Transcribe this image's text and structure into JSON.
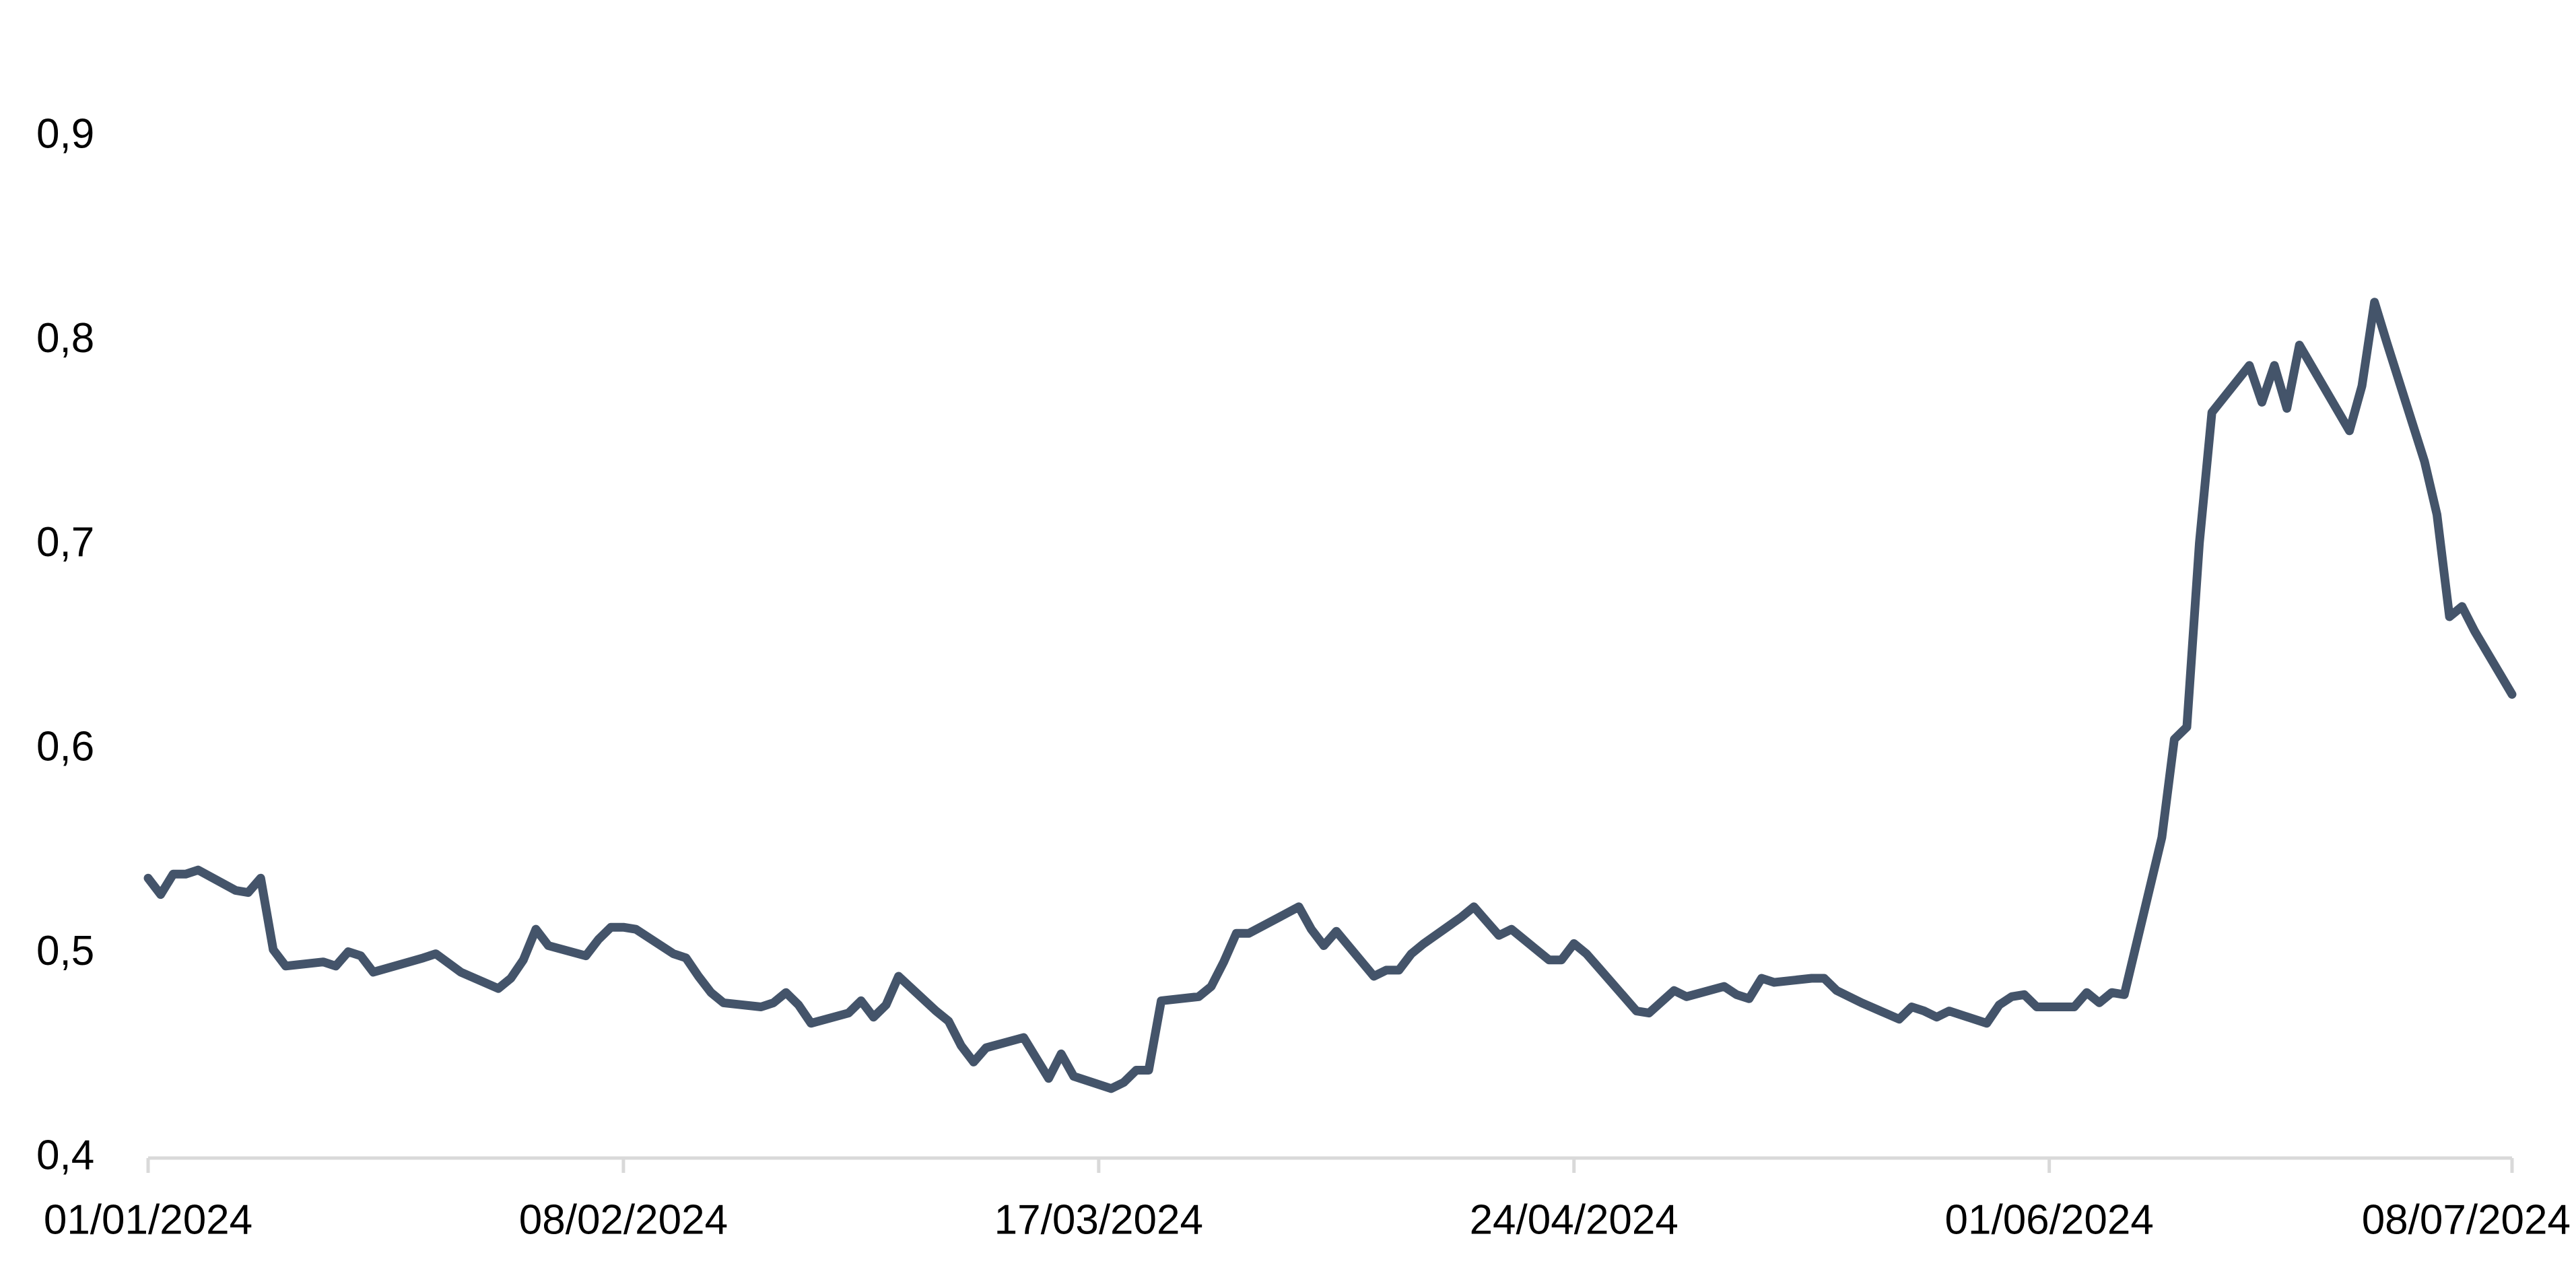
{
  "chart_data": {
    "type": "line",
    "x": [
      "01/01/2024",
      "02/01/2024",
      "03/01/2024",
      "04/01/2024",
      "05/01/2024",
      "08/01/2024",
      "09/01/2024",
      "10/01/2024",
      "11/01/2024",
      "12/01/2024",
      "15/01/2024",
      "16/01/2024",
      "17/01/2024",
      "18/01/2024",
      "19/01/2024",
      "23/01/2024",
      "24/01/2024",
      "26/01/2024",
      "29/01/2024",
      "30/01/2024",
      "31/01/2024",
      "01/02/2024",
      "02/02/2024",
      "05/02/2024",
      "06/02/2024",
      "07/02/2024",
      "08/02/2024",
      "09/02/2024",
      "12/02/2024",
      "13/02/2024",
      "14/02/2024",
      "15/02/2024",
      "16/02/2024",
      "19/02/2024",
      "20/02/2024",
      "21/02/2024",
      "22/02/2024",
      "23/02/2024",
      "26/02/2024",
      "27/02/2024",
      "28/02/2024",
      "29/02/2024",
      "01/03/2024",
      "04/03/2024",
      "05/03/2024",
      "06/03/2024",
      "07/03/2024",
      "08/03/2024",
      "11/03/2024",
      "12/03/2024",
      "13/03/2024",
      "14/03/2024",
      "15/03/2024",
      "18/03/2024",
      "19/03/2024",
      "20/03/2024",
      "21/03/2024",
      "22/03/2024",
      "25/03/2024",
      "26/03/2024",
      "27/03/2024",
      "28/03/2024",
      "29/03/2024",
      "02/04/2024",
      "03/04/2024",
      "04/04/2024",
      "05/04/2024",
      "08/04/2024",
      "09/04/2024",
      "10/04/2024",
      "11/04/2024",
      "12/04/2024",
      "15/04/2024",
      "16/04/2024",
      "17/04/2024",
      "18/04/2024",
      "19/04/2024",
      "22/04/2024",
      "23/04/2024",
      "24/04/2024",
      "25/04/2024",
      "26/04/2024",
      "29/04/2024",
      "30/04/2024",
      "02/05/2024",
      "03/05/2024",
      "06/05/2024",
      "07/05/2024",
      "08/05/2024",
      "09/05/2024",
      "10/05/2024",
      "13/05/2024",
      "14/05/2024",
      "15/05/2024",
      "17/05/2024",
      "20/05/2024",
      "21/05/2024",
      "22/05/2024",
      "23/05/2024",
      "24/05/2024",
      "27/05/2024",
      "28/05/2024",
      "29/05/2024",
      "30/05/2024",
      "31/05/2024",
      "03/06/2024",
      "04/06/2024",
      "05/06/2024",
      "06/06/2024",
      "07/06/2024",
      "10/06/2024",
      "11/06/2024",
      "12/06/2024",
      "13/06/2024",
      "14/06/2024",
      "17/06/2024",
      "18/06/2024",
      "19/06/2024",
      "20/06/2024",
      "21/06/2024",
      "25/06/2024",
      "26/06/2024",
      "27/06/2024",
      "28/06/2024",
      "01/07/2024",
      "02/07/2024",
      "03/07/2024",
      "04/07/2024",
      "05/07/2024",
      "08/07/2024"
    ],
    "series": [
      {
        "color": "#44546a",
        "values": [
          0.537,
          0.529,
          0.539,
          0.539,
          0.541,
          0.531,
          0.53,
          0.537,
          0.502,
          0.494,
          0.496,
          0.494,
          0.501,
          0.499,
          0.491,
          0.498,
          0.5,
          0.491,
          0.483,
          0.488,
          0.497,
          0.512,
          0.504,
          0.499,
          0.507,
          0.513,
          0.513,
          0.512,
          0.5,
          0.498,
          0.489,
          0.481,
          0.476,
          0.474,
          0.476,
          0.481,
          0.475,
          0.466,
          0.471,
          0.477,
          0.469,
          0.475,
          0.489,
          0.472,
          0.467,
          0.455,
          0.447,
          0.454,
          0.459,
          0.449,
          0.439,
          0.451,
          0.44,
          0.434,
          0.437,
          0.443,
          0.443,
          0.477,
          0.479,
          0.484,
          0.496,
          0.51,
          0.51,
          0.523,
          0.512,
          0.504,
          0.511,
          0.489,
          0.492,
          0.492,
          0.5,
          0.505,
          0.518,
          0.523,
          0.516,
          0.509,
          0.512,
          0.497,
          0.497,
          0.505,
          0.5,
          0.493,
          0.472,
          0.471,
          0.482,
          0.479,
          0.484,
          0.48,
          0.478,
          0.488,
          0.486,
          0.488,
          0.488,
          0.482,
          0.476,
          0.468,
          0.474,
          0.472,
          0.469,
          0.472,
          0.466,
          0.475,
          0.479,
          0.48,
          0.474,
          0.474,
          0.481,
          0.476,
          0.481,
          0.48,
          0.557,
          0.605,
          0.611,
          0.701,
          0.765,
          0.788,
          0.77,
          0.788,
          0.767,
          0.798,
          0.756,
          0.778,
          0.819,
          0.799,
          0.741,
          0.715,
          0.665,
          0.67,
          0.658,
          0.627
        ]
      }
    ],
    "xlim": [
      "01/01/2024",
      "08/07/2024"
    ],
    "xticks": [
      "01/01/2024",
      "08/02/2024",
      "17/03/2024",
      "24/04/2024",
      "01/06/2024",
      "08/07/2024"
    ],
    "ylim": [
      0.4,
      0.9
    ],
    "yticks": [
      {
        "value": 0.4,
        "label": "0,4"
      },
      {
        "value": 0.5,
        "label": "0,5"
      },
      {
        "value": 0.6,
        "label": "0,6"
      },
      {
        "value": 0.7,
        "label": "0,7"
      },
      {
        "value": 0.8,
        "label": "0,8"
      },
      {
        "value": 0.9,
        "label": "0,9"
      }
    ],
    "grid": false
  }
}
